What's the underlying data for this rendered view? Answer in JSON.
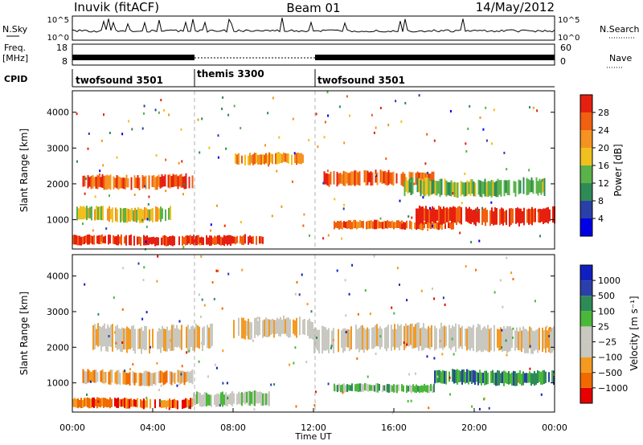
{
  "header": {
    "station": "Inuvik (fitACF)",
    "beam": "Beam 01",
    "date": "14/May/2012"
  },
  "noise_panel": {
    "left_label": "N.Sky",
    "right_label": "N.Search",
    "left_ticks": [
      "10^5",
      "10^0"
    ],
    "right_ticks": [
      "10^5",
      "10^0"
    ]
  },
  "freq_panel": {
    "left_label_1": "Freq.",
    "left_label_2": "[MHz]",
    "right_label": "Nave",
    "left_ticks": [
      "18",
      "8"
    ],
    "right_ticks": [
      "60",
      "0"
    ]
  },
  "cpid_panel": {
    "label": "CPID",
    "segments": [
      {
        "name": "twofsound 3501",
        "start_hour": 0,
        "end_hour": 6
      },
      {
        "name": "themis 3300",
        "start_hour": 6,
        "end_hour": 12
      },
      {
        "name": "twofsound 3501",
        "start_hour": 12,
        "end_hour": 24
      }
    ]
  },
  "colors": {
    "power": [
      "#0000e6",
      "#2a3fa8",
      "#2e8b57",
      "#5ab24a",
      "#f0c020",
      "#f59320",
      "#f06010",
      "#e62010"
    ],
    "velocity": [
      "#e60000",
      "#f06a00",
      "#f59a20",
      "#c8c8c0",
      "#c8c8c0",
      "#4ab83a",
      "#2e8b57",
      "#2a3fa8",
      "#1020c0"
    ]
  },
  "chart_data": [
    {
      "type": "heatmap",
      "panel": "power",
      "ylabel": "Slant Range [km]",
      "xlabel": "",
      "ylim": [
        180,
        4600
      ],
      "xlim": [
        0,
        24
      ],
      "y_ticks": [
        1000,
        2000,
        3000,
        4000
      ],
      "colorbar_label": "Power [dB]",
      "colorbar_ticks": [
        "4",
        "8",
        "12",
        "16",
        "20",
        "24",
        "28"
      ],
      "bands": [
        {
          "start_hour": 0.0,
          "end_hour": 6.0,
          "min_km": 250,
          "max_km": 600,
          "level": 7
        },
        {
          "start_hour": 0.2,
          "end_hour": 5.0,
          "min_km": 900,
          "max_km": 1400,
          "level": 4
        },
        {
          "start_hour": 0.5,
          "end_hour": 6.0,
          "min_km": 1800,
          "max_km": 2300,
          "level": 6
        },
        {
          "start_hour": 6.0,
          "end_hour": 9.5,
          "min_km": 250,
          "max_km": 600,
          "level": 7
        },
        {
          "start_hour": 8.0,
          "end_hour": 11.5,
          "min_km": 2500,
          "max_km": 2900,
          "level": 5
        },
        {
          "start_hour": 12.5,
          "end_hour": 18.0,
          "min_km": 1900,
          "max_km": 2400,
          "level": 6
        },
        {
          "start_hour": 13.0,
          "end_hour": 19.0,
          "min_km": 700,
          "max_km": 1000,
          "level": 6
        },
        {
          "start_hour": 17.0,
          "end_hour": 24.0,
          "min_km": 800,
          "max_km": 1400,
          "level": 7
        },
        {
          "start_hour": 16.5,
          "end_hour": 23.5,
          "min_km": 1600,
          "max_km": 2200,
          "level": 3
        }
      ]
    },
    {
      "type": "heatmap",
      "panel": "velocity",
      "ylabel": "Slant Range [km]",
      "xlabel": "Time UT",
      "ylim": [
        180,
        4600
      ],
      "xlim": [
        0,
        24
      ],
      "y_ticks": [
        1000,
        2000,
        3000,
        4000
      ],
      "x_tick_labels": [
        "00:00",
        "04:00",
        "08:00",
        "12:00",
        "16:00",
        "20:00",
        "00:00"
      ],
      "colorbar_label": "Velocity [m s⁻¹]",
      "colorbar_ticks": [
        "1000",
        "500",
        "100",
        "25",
        "−25",
        "−100",
        "−500",
        "−1000"
      ],
      "bands": [
        {
          "start_hour": 0.0,
          "end_hour": 6.0,
          "min_km": 250,
          "max_km": 600,
          "level": 1
        },
        {
          "start_hour": 0.5,
          "end_hour": 6.0,
          "min_km": 900,
          "max_km": 1400,
          "level": 2
        },
        {
          "start_hour": 1.0,
          "end_hour": 7.0,
          "min_km": 1800,
          "max_km": 2700,
          "level": 3
        },
        {
          "start_hour": 6.0,
          "end_hour": 10.0,
          "min_km": 300,
          "max_km": 800,
          "level": 4
        },
        {
          "start_hour": 8.0,
          "end_hour": 12.0,
          "min_km": 2200,
          "max_km": 2900,
          "level": 3
        },
        {
          "start_hour": 12.0,
          "end_hour": 24.0,
          "min_km": 1800,
          "max_km": 2700,
          "level": 3
        },
        {
          "start_hour": 13.0,
          "end_hour": 18.0,
          "min_km": 700,
          "max_km": 1000,
          "level": 5
        },
        {
          "start_hour": 18.0,
          "end_hour": 24.0,
          "min_km": 900,
          "max_km": 1400,
          "level": 6
        }
      ]
    }
  ]
}
